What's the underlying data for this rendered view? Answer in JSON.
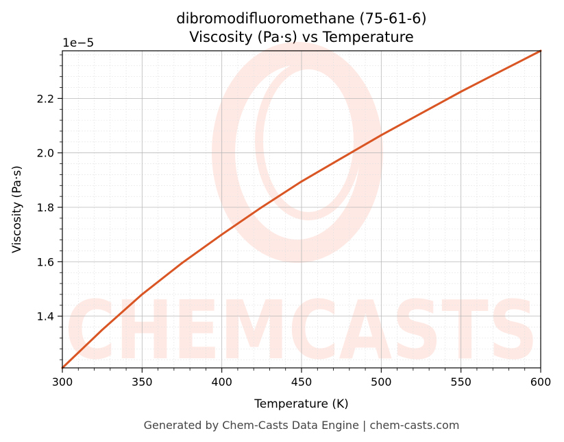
{
  "chart_data": {
    "type": "line",
    "title_line1": "dibromodifluoromethane (75-61-6)",
    "title_line2": "Viscosity (Pa·s) vs Temperature",
    "xlabel": "Temperature (K)",
    "ylabel": "Viscosity (Pa·s)",
    "y_exponent_label": "1e−5",
    "xlim": [
      300,
      600
    ],
    "ylim": [
      1.21,
      2.375
    ],
    "x_ticks": [
      300,
      350,
      400,
      450,
      500,
      550,
      600
    ],
    "x_tick_labels": [
      "300",
      "350",
      "400",
      "450",
      "500",
      "550",
      "600"
    ],
    "y_ticks": [
      1.4,
      1.6,
      1.8,
      2.0,
      2.2
    ],
    "y_tick_labels": [
      "1.4",
      "1.6",
      "1.8",
      "2.0",
      "2.2"
    ],
    "grid": true,
    "series": [
      {
        "color": "#d95523",
        "x": [
          300,
          325,
          350,
          375,
          400,
          425,
          450,
          475,
          500,
          525,
          550,
          575,
          600
        ],
        "y": [
          1.21,
          1.35,
          1.48,
          1.595,
          1.7,
          1.8,
          1.895,
          1.98,
          2.065,
          2.145,
          2.225,
          2.3,
          2.375
        ]
      }
    ]
  },
  "watermark": {
    "text": "CHEMCASTS",
    "color": "#ff7b5c"
  },
  "footer": {
    "text": "Generated by Chem-Casts Data Engine | chem-casts.com"
  }
}
